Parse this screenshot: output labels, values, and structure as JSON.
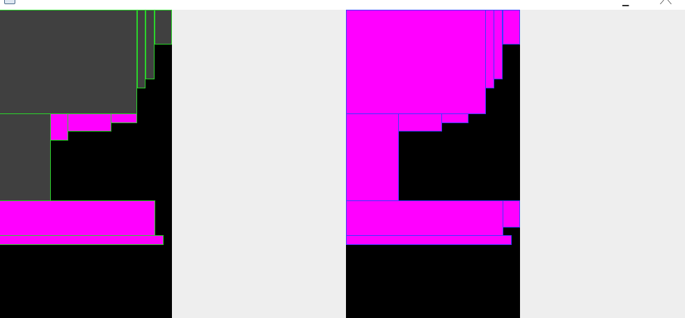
{
  "window": {
    "title": "",
    "icon": "app-window-icon",
    "controls": [
      "minimize-icon",
      "maximize-icon"
    ]
  },
  "colors": {
    "background": "#eeeeee",
    "panel": "#000000",
    "fill_gray": "#404040",
    "fill_magenta": "#ff00ff",
    "border_green": "#2bd42b",
    "border_blue": "#3b3bff"
  },
  "panels": [
    {
      "name": "left-layout-panel",
      "border_color": "#2bd42b"
    },
    {
      "name": "right-layout-panel",
      "border_color": "#3b3bff"
    }
  ]
}
